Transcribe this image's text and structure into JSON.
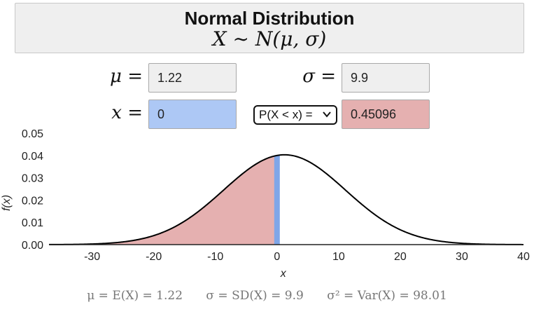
{
  "header": {
    "title": "Normal Distribution",
    "formula": "X ∼ N(μ, σ)"
  },
  "controls": {
    "mu_label": "μ =",
    "mu_value": "1.22",
    "sigma_label": "σ =",
    "sigma_value": "9.9",
    "x_label": "x =",
    "x_value": "0",
    "prob_select": "P(X < x) =",
    "prob_value": "0.45096"
  },
  "colors": {
    "shade": "#e5b0b0",
    "marker": "#7fa6e8",
    "curve": "#000000"
  },
  "chart_data": {
    "type": "area",
    "distribution": "normal",
    "mu": 1.22,
    "sigma": 9.9,
    "x_marker": 0,
    "shaded": "left of x",
    "xlabel": "x",
    "ylabel": "f(x)",
    "xlim": [
      -37,
      40
    ],
    "ylim": [
      0,
      0.05
    ],
    "x_ticks": [
      "-30",
      "-20",
      "-10",
      "0",
      "10",
      "20",
      "30",
      "40"
    ],
    "x_tick_values": [
      -30,
      -20,
      -10,
      0,
      10,
      20,
      30,
      40
    ],
    "y_ticks": [
      "0.00",
      "0.01",
      "0.02",
      "0.03",
      "0.04",
      "0.05"
    ],
    "y_tick_values": [
      0,
      0.01,
      0.02,
      0.03,
      0.04,
      0.05
    ],
    "grid": false
  },
  "footer": {
    "mean": "μ = E(X) = 1.22",
    "sd": "σ = SD(X) = 9.9",
    "var": "σ² = Var(X) = 98.01"
  }
}
